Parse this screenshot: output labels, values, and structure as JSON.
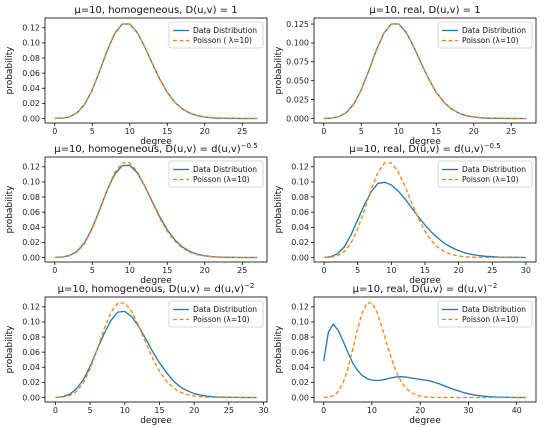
{
  "colors": {
    "data_distribution": "#1f77b4",
    "poisson": "#ff7f0e"
  },
  "chart_data": [
    {
      "type": "line",
      "title": "μ=10, homogeneous, D(u,v) = 1",
      "xlabel": "degree",
      "ylabel": "probability",
      "xlim": [
        -1.3,
        28.3
      ],
      "ylim": [
        -0.006,
        0.133
      ],
      "xticks": [
        0,
        5,
        10,
        15,
        20,
        25
      ],
      "yticks": [
        0.0,
        0.02,
        0.04,
        0.06,
        0.08,
        0.1,
        0.12
      ],
      "ytick_decimals": 2,
      "legend_position": "upper right",
      "series": [
        {
          "name": "Data Distribution",
          "style": "solid",
          "x": [
            0,
            1,
            2,
            3,
            4,
            5,
            6,
            7,
            8,
            9,
            10,
            11,
            12,
            13,
            14,
            15,
            16,
            17,
            18,
            19,
            20,
            21,
            22,
            23,
            24,
            25,
            26,
            27
          ],
          "y": [
            0.0,
            0.0005,
            0.0023,
            0.0076,
            0.0189,
            0.0378,
            0.0631,
            0.0901,
            0.1126,
            0.1251,
            0.1251,
            0.1137,
            0.0948,
            0.0729,
            0.0521,
            0.0347,
            0.0217,
            0.0128,
            0.0071,
            0.0037,
            0.0019,
            0.0009,
            0.0004,
            0.0002,
            0.0001,
            0.0,
            0.0,
            0.0
          ]
        },
        {
          "name": "Poisson ( λ=10)",
          "style": "dashed",
          "x": [
            0,
            1,
            2,
            3,
            4,
            5,
            6,
            7,
            8,
            9,
            10,
            11,
            12,
            13,
            14,
            15,
            16,
            17,
            18,
            19,
            20,
            21,
            22,
            23,
            24,
            25,
            26,
            27
          ],
          "y": [
            0.0,
            0.0005,
            0.0023,
            0.0076,
            0.0189,
            0.0378,
            0.0631,
            0.0901,
            0.1126,
            0.1251,
            0.1251,
            0.1137,
            0.0948,
            0.0729,
            0.0521,
            0.0347,
            0.0217,
            0.0128,
            0.0071,
            0.0037,
            0.0019,
            0.0009,
            0.0004,
            0.0002,
            0.0001,
            0.0,
            0.0,
            0.0
          ]
        }
      ]
    },
    {
      "type": "line",
      "title": "μ=10, real, D(u,v) = 1",
      "xlabel": "degree",
      "ylabel": "probability",
      "xlim": [
        -1.3,
        28.3
      ],
      "ylim": [
        -0.006,
        0.133
      ],
      "xticks": [
        0,
        5,
        10,
        15,
        20,
        25
      ],
      "yticks": [
        0.0,
        0.025,
        0.05,
        0.075,
        0.1,
        0.125
      ],
      "ytick_decimals": 3,
      "legend_position": "upper right",
      "series": [
        {
          "name": "Data Distribution",
          "style": "solid",
          "x": [
            0,
            1,
            2,
            3,
            4,
            5,
            6,
            7,
            8,
            9,
            10,
            11,
            12,
            13,
            14,
            15,
            16,
            17,
            18,
            19,
            20,
            21,
            22,
            23,
            24,
            25,
            26,
            27
          ],
          "y": [
            0.0,
            0.0005,
            0.0023,
            0.0076,
            0.0189,
            0.0378,
            0.0631,
            0.0901,
            0.1126,
            0.1251,
            0.1251,
            0.1137,
            0.0948,
            0.0729,
            0.0521,
            0.0347,
            0.0217,
            0.0128,
            0.0071,
            0.0037,
            0.0019,
            0.0009,
            0.0004,
            0.0002,
            0.0001,
            0.0,
            0.0,
            0.0
          ]
        },
        {
          "name": "Poisson (λ=10)",
          "style": "dashed",
          "x": [
            0,
            1,
            2,
            3,
            4,
            5,
            6,
            7,
            8,
            9,
            10,
            11,
            12,
            13,
            14,
            15,
            16,
            17,
            18,
            19,
            20,
            21,
            22,
            23,
            24,
            25,
            26,
            27
          ],
          "y": [
            0.0,
            0.0005,
            0.0023,
            0.0076,
            0.0189,
            0.0378,
            0.0631,
            0.0901,
            0.1126,
            0.1251,
            0.1251,
            0.1137,
            0.0948,
            0.0729,
            0.0521,
            0.0347,
            0.0217,
            0.0128,
            0.0071,
            0.0037,
            0.0019,
            0.0009,
            0.0004,
            0.0002,
            0.0001,
            0.0,
            0.0,
            0.0
          ]
        }
      ]
    },
    {
      "type": "line",
      "title": "μ=10, homogeneous, D(u,v) = d(u,v)^−0.5",
      "xlabel": "degree",
      "ylabel": "probability",
      "xlim": [
        -1.3,
        28.3
      ],
      "ylim": [
        -0.006,
        0.133
      ],
      "xticks": [
        0,
        5,
        10,
        15,
        20,
        25
      ],
      "yticks": [
        0.0,
        0.02,
        0.04,
        0.06,
        0.08,
        0.1,
        0.12
      ],
      "ytick_decimals": 2,
      "legend_position": "upper right",
      "series": [
        {
          "name": "Data Distribution",
          "style": "solid",
          "x": [
            0,
            1,
            2,
            3,
            4,
            5,
            6,
            7,
            8,
            9,
            10,
            11,
            12,
            13,
            14,
            15,
            16,
            17,
            18,
            19,
            20,
            21,
            22,
            23,
            24,
            25,
            26,
            27
          ],
          "y": [
            0.0,
            0.0006,
            0.0027,
            0.0084,
            0.0201,
            0.039,
            0.0637,
            0.0895,
            0.1103,
            0.1215,
            0.122,
            0.112,
            0.0945,
            0.0739,
            0.0539,
            0.0367,
            0.0234,
            0.0141,
            0.008,
            0.0043,
            0.0022,
            0.0011,
            0.0005,
            0.0002,
            0.0001,
            0.0,
            0.0,
            0.0
          ]
        },
        {
          "name": "Poisson (λ=10)",
          "style": "dashed",
          "x": [
            0,
            1,
            2,
            3,
            4,
            5,
            6,
            7,
            8,
            9,
            10,
            11,
            12,
            13,
            14,
            15,
            16,
            17,
            18,
            19,
            20,
            21,
            22,
            23,
            24,
            25,
            26,
            27
          ],
          "y": [
            0.0,
            0.0005,
            0.0023,
            0.0076,
            0.0189,
            0.0378,
            0.0631,
            0.0901,
            0.1126,
            0.1251,
            0.1251,
            0.1137,
            0.0948,
            0.0729,
            0.0521,
            0.0347,
            0.0217,
            0.0128,
            0.0071,
            0.0037,
            0.0019,
            0.0009,
            0.0004,
            0.0002,
            0.0001,
            0.0,
            0.0,
            0.0
          ]
        }
      ]
    },
    {
      "type": "line",
      "title": "μ=10, real, D(u,v) = d(u,v)^−0.5",
      "xlabel": "degree",
      "ylabel": "probability",
      "xlim": [
        -1.5,
        31.5
      ],
      "ylim": [
        -0.006,
        0.133
      ],
      "xticks": [
        0,
        5,
        10,
        15,
        20,
        25,
        30
      ],
      "yticks": [
        0.0,
        0.02,
        0.04,
        0.06,
        0.08,
        0.1,
        0.12
      ],
      "ytick_decimals": 2,
      "legend_position": "upper right",
      "series": [
        {
          "name": "Data Distribution",
          "style": "solid",
          "x": [
            0,
            1,
            2,
            3,
            4,
            5,
            6,
            7,
            8,
            9,
            10,
            11,
            12,
            13,
            14,
            15,
            16,
            17,
            18,
            19,
            20,
            21,
            22,
            23,
            24,
            25,
            26,
            27,
            28,
            29,
            30
          ],
          "y": [
            0.0,
            0.001,
            0.005,
            0.014,
            0.03,
            0.05,
            0.07,
            0.087,
            0.098,
            0.0995,
            0.096,
            0.088,
            0.078,
            0.066,
            0.054,
            0.043,
            0.033,
            0.025,
            0.018,
            0.013,
            0.009,
            0.006,
            0.004,
            0.0025,
            0.0015,
            0.001,
            0.0005,
            0.0003,
            0.0002,
            0.0001,
            0.0
          ]
        },
        {
          "name": "Poisson (λ=10)",
          "style": "dashed",
          "x": [
            0,
            1,
            2,
            3,
            4,
            5,
            6,
            7,
            8,
            9,
            10,
            11,
            12,
            13,
            14,
            15,
            16,
            17,
            18,
            19,
            20,
            21,
            22,
            23,
            24,
            25,
            26,
            27,
            28,
            29,
            30
          ],
          "y": [
            0.0,
            0.0005,
            0.0023,
            0.0076,
            0.0189,
            0.0378,
            0.0631,
            0.0901,
            0.1126,
            0.1251,
            0.1251,
            0.1137,
            0.0948,
            0.0729,
            0.0521,
            0.0347,
            0.0217,
            0.0128,
            0.0071,
            0.0037,
            0.0019,
            0.0009,
            0.0004,
            0.0002,
            0.0001,
            0.0,
            0.0,
            0.0,
            0.0,
            0.0,
            0.0
          ]
        }
      ]
    },
    {
      "type": "line",
      "title": "μ=10, homogeneous, D(u,v) = d(u,v)^−2",
      "xlabel": "degree",
      "ylabel": "probability",
      "xlim": [
        -1.5,
        30.5
      ],
      "ylim": [
        -0.006,
        0.133
      ],
      "xticks": [
        0,
        5,
        10,
        15,
        20,
        25,
        30
      ],
      "yticks": [
        0.0,
        0.02,
        0.04,
        0.06,
        0.08,
        0.1,
        0.12
      ],
      "ytick_decimals": 2,
      "legend_position": "upper right",
      "series": [
        {
          "name": "Data Distribution",
          "style": "solid",
          "x": [
            0,
            1,
            2,
            3,
            4,
            5,
            6,
            7,
            8,
            9,
            10,
            11,
            12,
            13,
            14,
            15,
            16,
            17,
            18,
            19,
            20,
            21,
            22,
            23,
            24,
            25,
            26,
            27,
            28,
            29
          ],
          "y": [
            0.0,
            0.001,
            0.004,
            0.011,
            0.023,
            0.041,
            0.063,
            0.084,
            0.102,
            0.113,
            0.114,
            0.107,
            0.094,
            0.078,
            0.061,
            0.046,
            0.033,
            0.022,
            0.014,
            0.009,
            0.005,
            0.003,
            0.0015,
            0.0008,
            0.0004,
            0.0002,
            0.0001,
            0.0,
            0.0,
            0.0
          ]
        },
        {
          "name": "Poisson (λ=10)",
          "style": "dashed",
          "x": [
            0,
            1,
            2,
            3,
            4,
            5,
            6,
            7,
            8,
            9,
            10,
            11,
            12,
            13,
            14,
            15,
            16,
            17,
            18,
            19,
            20,
            21,
            22,
            23,
            24,
            25,
            26,
            27,
            28,
            29
          ],
          "y": [
            0.0,
            0.0005,
            0.0023,
            0.0076,
            0.0189,
            0.0378,
            0.0631,
            0.0901,
            0.1126,
            0.1251,
            0.1251,
            0.1137,
            0.0948,
            0.0729,
            0.0521,
            0.0347,
            0.0217,
            0.0128,
            0.0071,
            0.0037,
            0.0019,
            0.0009,
            0.0004,
            0.0002,
            0.0001,
            0.0,
            0.0,
            0.0,
            0.0,
            0.0
          ]
        }
      ]
    },
    {
      "type": "line",
      "title": "μ=10, real, D(u,v) = d(u,v)^−2",
      "xlabel": "degree",
      "ylabel": "probability",
      "xlim": [
        -2,
        44
      ],
      "ylim": [
        -0.006,
        0.133
      ],
      "xticks": [
        0,
        10,
        20,
        30,
        40
      ],
      "yticks": [
        0.0,
        0.02,
        0.04,
        0.06,
        0.08,
        0.1,
        0.12
      ],
      "ytick_decimals": 2,
      "legend_position": "upper right",
      "series": [
        {
          "name": "Data Distribution",
          "style": "solid",
          "x": [
            0,
            1,
            2,
            3,
            4,
            5,
            6,
            7,
            8,
            9,
            10,
            11,
            12,
            13,
            14,
            15,
            16,
            17,
            18,
            19,
            20,
            21,
            22,
            23,
            24,
            25,
            26,
            27,
            28,
            29,
            30,
            31,
            32,
            33,
            34,
            35,
            36,
            37,
            38,
            39,
            40,
            41,
            42
          ],
          "y": [
            0.048,
            0.087,
            0.097,
            0.089,
            0.075,
            0.06,
            0.046,
            0.036,
            0.029,
            0.025,
            0.023,
            0.0225,
            0.023,
            0.0245,
            0.026,
            0.027,
            0.0275,
            0.027,
            0.026,
            0.025,
            0.024,
            0.023,
            0.022,
            0.02,
            0.018,
            0.0155,
            0.013,
            0.0105,
            0.0085,
            0.0065,
            0.005,
            0.0035,
            0.0025,
            0.0018,
            0.0012,
            0.0008,
            0.0005,
            0.0003,
            0.0002,
            0.0001,
            0.0,
            0.0,
            0.0
          ]
        },
        {
          "name": "Poisson (λ=10)",
          "style": "dashed",
          "x": [
            0,
            1,
            2,
            3,
            4,
            5,
            6,
            7,
            8,
            9,
            10,
            11,
            12,
            13,
            14,
            15,
            16,
            17,
            18,
            19,
            20,
            21,
            22,
            23,
            24,
            25,
            26,
            27,
            28,
            29,
            30,
            31,
            32,
            33,
            34,
            35,
            36,
            37,
            38,
            39,
            40,
            41,
            42
          ],
          "y": [
            0.0,
            0.0005,
            0.0023,
            0.0076,
            0.0189,
            0.0378,
            0.0631,
            0.0901,
            0.1126,
            0.1251,
            0.1251,
            0.1137,
            0.0948,
            0.0729,
            0.0521,
            0.0347,
            0.0217,
            0.0128,
            0.0071,
            0.0037,
            0.0019,
            0.0009,
            0.0004,
            0.0002,
            0.0001,
            0.0,
            0.0,
            0.0,
            0.0,
            0.0,
            0.0,
            0.0,
            0.0,
            0.0,
            0.0,
            0.0,
            0.0,
            0.0,
            0.0,
            0.0,
            0.0,
            0.0,
            0.0
          ]
        }
      ]
    }
  ]
}
